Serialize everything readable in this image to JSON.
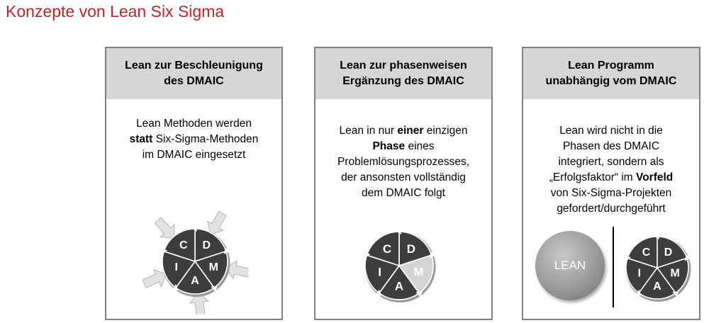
{
  "title": "Konzepte von Lean Six Sigma",
  "cards": [
    {
      "header": [
        "Lean zur Beschleunigung",
        "des DMAIC"
      ],
      "body": [
        [
          {
            "t": "Lean Methoden werden",
            "b": false
          }
        ],
        [
          {
            "t": "statt",
            "b": true
          },
          {
            "t": " Six-Sigma-Methoden",
            "b": false
          }
        ],
        [
          {
            "t": "im DMAIC eingesetzt",
            "b": false
          }
        ]
      ]
    },
    {
      "header": [
        "Lean zur phasenweisen",
        "Ergänzung des DMAIC"
      ],
      "body": [
        [
          {
            "t": "Lean in nur ",
            "b": false
          },
          {
            "t": "einer",
            "b": true
          },
          {
            "t": " einzigen",
            "b": false
          }
        ],
        [
          {
            "t": "Phase",
            "b": true
          },
          {
            "t": " eines",
            "b": false
          }
        ],
        [
          {
            "t": "Problemlösungsprozesses,",
            "b": false
          }
        ],
        [
          {
            "t": "der ansonsten vollständig",
            "b": false
          }
        ],
        [
          {
            "t": "dem DMAIC folgt",
            "b": false
          }
        ]
      ]
    },
    {
      "header": [
        "Lean Programm",
        "unabhängig vom DMAIC"
      ],
      "body": [
        [
          {
            "t": "Lean wird nicht in die",
            "b": false
          }
        ],
        [
          {
            "t": "Phasen des DMAIC",
            "b": false
          }
        ],
        [
          {
            "t": "integriert, sondern als",
            "b": false
          }
        ],
        [
          {
            "t": "„Erfolgsfaktor“ im ",
            "b": false
          },
          {
            "t": "Vorfeld",
            "b": true
          }
        ],
        [
          {
            "t": "von Six-Sigma-Projekten",
            "b": false
          }
        ],
        [
          {
            "t": "gefordert/durchgeführt",
            "b": false
          }
        ]
      ]
    }
  ],
  "dmaic_letters": [
    "D",
    "M",
    "A",
    "I",
    "C"
  ],
  "lean_label": "LEAN",
  "colors": {
    "title": "#c0242a",
    "header_bg": "#d6d6d6",
    "border": "#808080",
    "segment_dark": "#3d3d3d",
    "segment_highlight": "#d4d4d4"
  }
}
